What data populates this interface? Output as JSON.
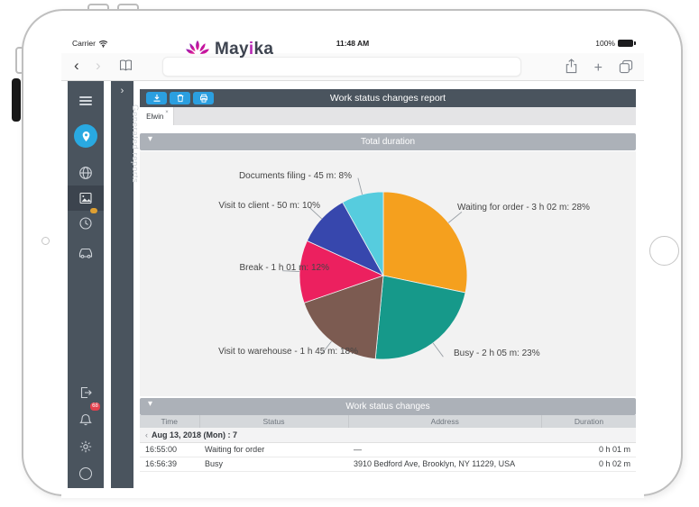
{
  "device": {
    "carrier": "Carrier",
    "time": "11:48 AM",
    "battery": "100%"
  },
  "brand": {
    "name_pre": "May",
    "name_mid": "i",
    "name_post": "ka"
  },
  "icons": {
    "back": "‹",
    "forward": "›",
    "plus": "+",
    "section_chevron": "▾",
    "panel_chevron": "›",
    "group_chevron": "‹",
    "tab_close": "×"
  },
  "sidebar": {
    "bell_badge": "68"
  },
  "reports_panel": {
    "title": "Generated reports"
  },
  "report": {
    "title": "Work status changes report",
    "tab_label": "Elwin",
    "section_total": "Total duration",
    "section_changes": "Work status changes"
  },
  "chart_data": {
    "type": "pie",
    "title": "Total duration",
    "start_angle_deg": -90,
    "direction": "clockwise",
    "legend_position": "callout-labels",
    "slices": [
      {
        "name": "Waiting for order",
        "duration": "3 h 02 m",
        "percent": 28,
        "color": "#F5A01E",
        "label": "Waiting for order - 3 h 02 m: 28%"
      },
      {
        "name": "Busy",
        "duration": "2 h 05 m",
        "percent": 23,
        "color": "#16998A",
        "label": "Busy - 2 h 05 m: 23%"
      },
      {
        "name": "Visit to warehouse",
        "duration": "1 h 45 m",
        "percent": 18,
        "color": "#7C5B51",
        "label": "Visit to warehouse - 1 h 45 m: 18%"
      },
      {
        "name": "Break",
        "duration": "1 h 01 m",
        "percent": 12,
        "color": "#EC205F",
        "label": "Break - 1 h 01 m: 12%"
      },
      {
        "name": "Visit to client",
        "duration": "50 m",
        "percent": 10,
        "color": "#3747AD",
        "label": "Visit to client - 50 m: 10%"
      },
      {
        "name": "Documents filing",
        "duration": "45 m",
        "percent": 8,
        "color": "#56CCDE",
        "label": "Documents filing - 45 m: 8%"
      }
    ]
  },
  "table": {
    "headers": [
      "Time",
      "Status",
      "Address",
      "Duration"
    ],
    "group_label": "Aug 13, 2018 (Mon) : 7",
    "rows": [
      {
        "time": "16:55:00",
        "status": "Waiting for order",
        "address": "—",
        "duration": "0 h 01 m"
      },
      {
        "time": "16:56:39",
        "status": "Busy",
        "address": "3910 Bedford Ave, Brooklyn, NY 11229, USA",
        "duration": "0 h 02 m"
      }
    ]
  }
}
